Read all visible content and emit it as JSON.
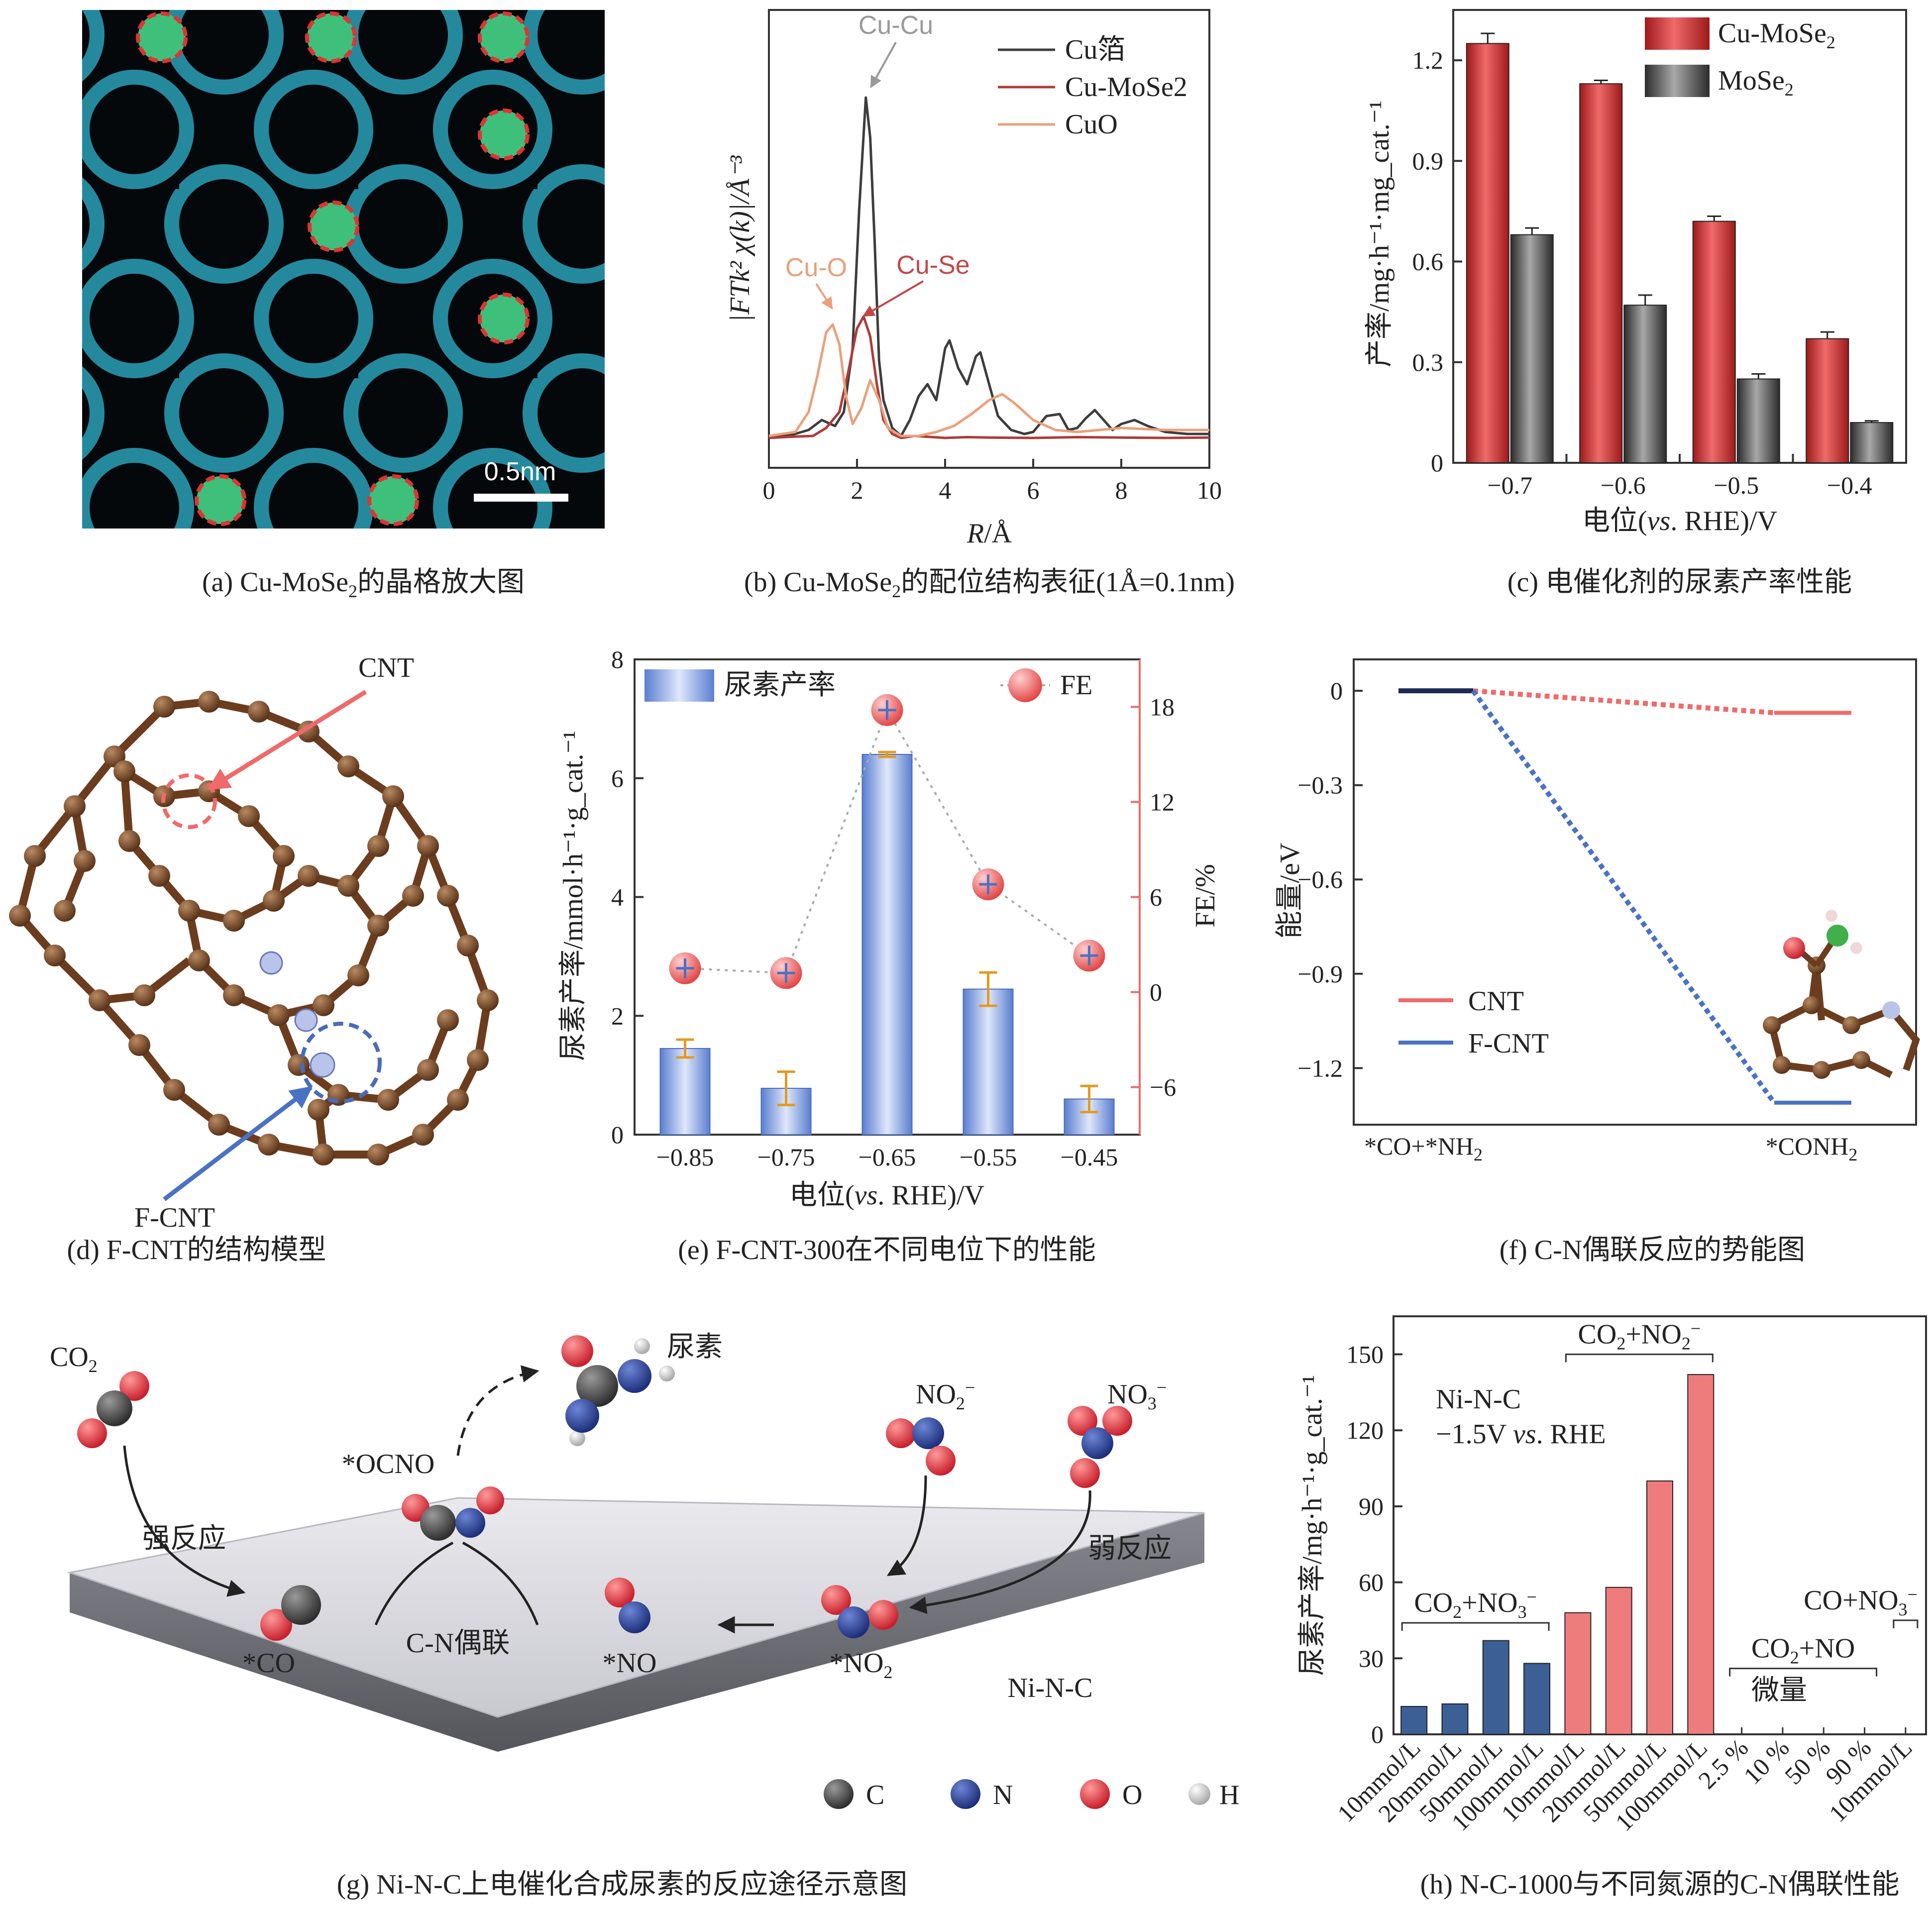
{
  "panel_a": {
    "scale_bar": "0.5nm",
    "caption_pre": "(a) Cu-MoSe",
    "caption_sub": "2",
    "caption_post": "的晶格放大图"
  },
  "panel_b": {
    "caption_pre": "(b) Cu-MoSe",
    "caption_sub": "2",
    "caption_post": "的配位结构表征(1Å=0.1nm)",
    "ann_cucu": "Cu-Cu",
    "ann_cuo": "Cu-O",
    "ann_cuse": "Cu-Se"
  },
  "panel_c": {
    "caption": "(c) 电催化剂的尿素产率性能"
  },
  "panel_d": {
    "label_cnt": "CNT",
    "label_fcnt": "F-CNT",
    "caption": "(d) F-CNT的结构模型"
  },
  "panel_e": {
    "caption": "(e) F-CNT-300在不同电位下的性能"
  },
  "panel_f": {
    "caption": "(f) C-N偶联反应的势能图"
  },
  "panel_g": {
    "caption": "(g) Ni-N-C上电催化合成尿素的反应途径示意图",
    "co2": "CO",
    "co2_sub": "2",
    "urea": "尿素",
    "ocno": "*OCNO",
    "no2": "NO",
    "no2_sub": "2",
    "no2_sup": "−",
    "no3": "NO",
    "no3_sub": "3",
    "no3_sup": "−",
    "strong": "强反应",
    "weak": "弱反应",
    "coupling": "C-N偶联",
    "s_co": "*CO",
    "s_no": "*NO",
    "s_no2": "*NO",
    "s_no2_sub": "2",
    "surface": "Ni-N-C",
    "legend": [
      "C",
      "N",
      "O",
      "H"
    ]
  },
  "panel_h": {
    "caption": "(h) N-C-1000与不同氮源的C-N偶联性能",
    "inset1": "Ni-N-C",
    "inset2_pre": "−1.5V ",
    "inset2_it": "vs",
    "inset2_post": ". RHE",
    "trace": "微量"
  },
  "colors": {
    "red_bar": "#c62d2d",
    "gray_bar": "#555555",
    "blue": "#4a72c4",
    "pink": "#ef7c7c",
    "navy": "#3c5f95"
  },
  "chart_data": [
    {
      "type": "line",
      "id": "b",
      "title": "",
      "xlabel_italic": "R",
      "xlabel_rest": "/Å",
      "ylabel": "|FTk² χ(k)|/Å⁻³",
      "xlim": [
        0,
        10
      ],
      "xticks": [
        "0",
        "2",
        "4",
        "6",
        "8",
        "10"
      ],
      "series": [
        {
          "name": "Cu箔",
          "color": "#3d3d3d",
          "x": [
            0,
            0.5,
            0.9,
            1.2,
            1.5,
            1.7,
            1.9,
            2.05,
            2.2,
            2.3,
            2.4,
            2.5,
            2.6,
            2.8,
            3.0,
            3.2,
            3.4,
            3.6,
            3.8,
            4.0,
            4.1,
            4.3,
            4.5,
            4.7,
            4.8,
            5.0,
            5.2,
            5.5,
            5.8,
            6.0,
            6.3,
            6.6,
            6.8,
            7.0,
            7.2,
            7.4,
            7.6,
            7.8,
            8.0,
            8.3,
            8.6,
            9.0,
            9.5,
            10
          ],
          "y": [
            0.3,
            0.32,
            0.45,
            0.7,
            0.55,
            0.9,
            2.5,
            6.0,
            8.8,
            7.8,
            5.2,
            2.2,
            1.2,
            0.5,
            0.3,
            0.7,
            1.3,
            1.6,
            1.2,
            2.5,
            2.7,
            2.0,
            1.6,
            2.3,
            2.4,
            1.6,
            0.8,
            0.45,
            0.35,
            0.4,
            0.8,
            0.85,
            0.45,
            0.5,
            0.75,
            0.95,
            0.7,
            0.45,
            0.6,
            0.7,
            0.55,
            0.4,
            0.35,
            0.35
          ]
        },
        {
          "name": "Cu-MoSe2",
          "color": "#b03a3a",
          "x": [
            0,
            0.5,
            1.0,
            1.3,
            1.6,
            1.8,
            2.0,
            2.15,
            2.3,
            2.45,
            2.6,
            2.8,
            3.0,
            3.3,
            3.6,
            4.0,
            4.5,
            5.0,
            6.0,
            7.0,
            8.0,
            9.0,
            10
          ],
          "y": [
            0.25,
            0.28,
            0.3,
            0.5,
            0.9,
            1.9,
            3.0,
            3.3,
            2.8,
            1.6,
            0.7,
            0.35,
            0.25,
            0.3,
            0.28,
            0.25,
            0.27,
            0.26,
            0.25,
            0.27,
            0.26,
            0.25,
            0.26
          ]
        },
        {
          "name": "CuO",
          "color": "#eaa07a",
          "x": [
            0,
            0.6,
            0.9,
            1.1,
            1.3,
            1.45,
            1.6,
            1.75,
            1.9,
            2.1,
            2.3,
            2.5,
            2.7,
            3.0,
            3.4,
            3.8,
            4.2,
            4.6,
            5.0,
            5.3,
            5.6,
            6.0,
            6.5,
            7.0,
            7.5,
            8.0,
            9.0,
            10
          ],
          "y": [
            0.3,
            0.4,
            0.9,
            1.8,
            2.9,
            3.1,
            2.6,
            1.3,
            0.6,
            1.0,
            1.7,
            1.2,
            0.5,
            0.3,
            0.3,
            0.4,
            0.55,
            0.85,
            1.2,
            1.35,
            1.1,
            0.7,
            0.45,
            0.4,
            0.45,
            0.5,
            0.45,
            0.45
          ]
        }
      ]
    },
    {
      "type": "bar",
      "id": "c",
      "xlabel_pre": "电位(",
      "xlabel_it": "vs",
      "xlabel_post": ". RHE)/V",
      "ylabel": "产率/mg·h⁻¹·mg_cat.⁻¹",
      "categories": [
        "−0.7",
        "−0.6",
        "−0.5",
        "−0.4"
      ],
      "ylim": [
        0,
        1.35
      ],
      "yticks": [
        "0",
        "0.3",
        "0.6",
        "0.9",
        "1.2"
      ],
      "series": [
        {
          "name": "Cu-MoSe2",
          "color": "#c62d2d",
          "values": [
            1.25,
            1.13,
            0.72,
            0.37
          ],
          "errors": [
            0.03,
            0.01,
            0.015,
            0.02
          ]
        },
        {
          "name": "MoSe2",
          "color": "#555555",
          "values": [
            0.68,
            0.47,
            0.25,
            0.12
          ],
          "errors": [
            0.02,
            0.03,
            0.015,
            0.005
          ]
        }
      ],
      "legend": [
        "Cu-MoSe",
        "MoSe"
      ]
    },
    {
      "type": "bar",
      "id": "e",
      "xlabel_pre": "电位(",
      "xlabel_it": "vs",
      "xlabel_post": ". RHE)/V",
      "ylabel": "尿素产率/mmol·h⁻¹·g_cat.⁻¹",
      "ylabel2": "FE/%",
      "categories": [
        "−0.85",
        "−0.75",
        "−0.65",
        "−0.55",
        "−0.45"
      ],
      "ylim": [
        0,
        8
      ],
      "yticks": [
        "0",
        "2",
        "4",
        "6",
        "8"
      ],
      "y2lim": [
        -9,
        21
      ],
      "y2ticks": [
        "−6",
        "0",
        "6",
        "12",
        "18"
      ],
      "series": [
        {
          "name": "尿素产率",
          "values": [
            1.45,
            0.78,
            6.4,
            2.45,
            0.6
          ],
          "errors": [
            0.15,
            0.28,
            0.04,
            0.28,
            0.22
          ]
        },
        {
          "name": "FE",
          "values": [
            1.5,
            1.2,
            17.8,
            6.8,
            2.3
          ]
        }
      ],
      "legend": [
        "尿素产率",
        "FE"
      ]
    },
    {
      "type": "line",
      "id": "f",
      "ylabel": "能量/eV",
      "categories": [
        "*CO+*NH",
        "*CONH"
      ],
      "ylim": [
        -1.38,
        0.1
      ],
      "yticks": [
        "0",
        "−0.3",
        "−0.6",
        "−0.9",
        "−1.2"
      ],
      "series": [
        {
          "name": "CNT",
          "color": "#ef6a6a",
          "values": [
            0,
            -0.07
          ]
        },
        {
          "name": "F-CNT",
          "color": "#4a72c4",
          "values": [
            0,
            -1.31
          ]
        }
      ],
      "legend": [
        "CNT",
        "F-CNT"
      ]
    },
    {
      "type": "bar",
      "id": "h",
      "ylabel": "尿素产率/mg·h⁻¹·g_cat.⁻¹",
      "ylim": [
        0,
        165
      ],
      "yticks": [
        "0",
        "30",
        "60",
        "90",
        "120",
        "150"
      ],
      "categories": [
        "10mmol/L",
        "20mmol/L",
        "50mmol/L",
        "100mmol/L",
        "10mmol/L",
        "20mmol/L",
        "50mmol/L",
        "100mmol/L",
        "2.5 %",
        "10 %",
        "50 %",
        "90 %",
        "10mmol/L"
      ],
      "values": [
        11,
        12,
        37,
        28,
        48,
        58,
        100,
        142,
        0,
        0,
        0,
        0,
        0
      ],
      "groups": [
        "CO2+NO3−",
        "CO2+NO2−",
        "CO2+NO",
        "CO+NO3−"
      ]
    }
  ]
}
